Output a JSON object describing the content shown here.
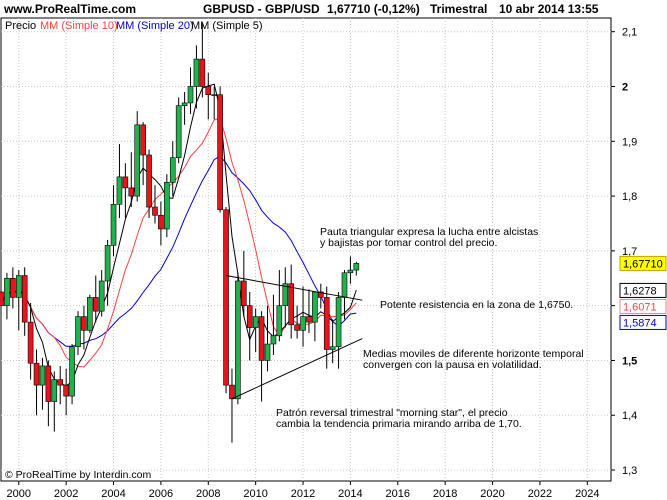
{
  "header": {
    "site": "www.ProRealTime.com",
    "instrument": "GBPUSD - GBP/USD",
    "quote": "1,67710 (-0,12%)",
    "period": "Trimestral",
    "datetime": "10 abr 2014 13:55"
  },
  "legend": {
    "price": "Precio",
    "ma10": "MM (Simple 10)",
    "ma20": "MM (Simple 20)",
    "ma5": "MM (Simple 5)"
  },
  "footer": {
    "copyright": "© ProRealTime by Interdin.com"
  },
  "annotations": {
    "triangle_l1": "Pauta triangular expresa la lucha entre alcistas",
    "triangle_l2": "y bajistas por tomar control del precio.",
    "resistance": "Potente resistencia en la zona de 1,6750.",
    "ma_l1": "Medias moviles de diferente horizonte temporal",
    "ma_l2": "convergen con la pausa en volatilidad.",
    "ms_l1": "Patrón reversal trimestral \"morning star\", el precio",
    "ms_l2": "cambia la tendencia primaria mirando arriba de 1,70."
  },
  "price_labels": [
    {
      "value": "1,67710",
      "y": 1.6771,
      "bg": "#ffff00",
      "border": "#c8a000",
      "color": "#000000"
    },
    {
      "value": "1,6278",
      "y": 1.6278,
      "bg": "#ffffff",
      "border": "#000000",
      "color": "#000000"
    },
    {
      "value": "1,6071",
      "y": 1.6071,
      "bg": "#ffffff",
      "border": "#ff8080",
      "color": "#ff4040"
    },
    {
      "value": "1,5874",
      "y": 1.5874,
      "bg": "#ffffff",
      "border": "#0000cc",
      "color": "#0000cc"
    }
  ],
  "colors": {
    "up": "#22b14c",
    "down": "#e8141c",
    "ma5": "#000000",
    "ma10": "#ff4040",
    "ma20": "#0000cc",
    "trendline": "#000000"
  },
  "chart_data": {
    "type": "candlestick",
    "xlim": [
      1999.25,
      2025.0
    ],
    "ylim": [
      1.28,
      2.125
    ],
    "y_ticks": [
      1.3,
      1.4,
      1.5,
      1.6,
      1.7,
      1.8,
      1.9,
      2.0,
      2.1
    ],
    "y_tick_labels": [
      "1,3",
      "1,4",
      "1,5",
      "",
      "1,7",
      "1,8",
      "1,9",
      "2",
      "2,1"
    ],
    "x_ticks": [
      2000,
      2002,
      2004,
      2006,
      2008,
      2010,
      2012,
      2014,
      2016,
      2018,
      2020,
      2022,
      2024
    ],
    "x_tick_labels": [
      "2000",
      "2002",
      "2004",
      "2006",
      "2008",
      "2010",
      "2012",
      "2014",
      "2016",
      "2018",
      "2020",
      "2022",
      "2024"
    ],
    "candles": [
      {
        "t": 1999.25,
        "o": 1.625,
        "h": 1.66,
        "l": 1.585,
        "c": 1.6
      },
      {
        "t": 1999.5,
        "o": 1.6,
        "h": 1.66,
        "l": 1.575,
        "c": 1.65
      },
      {
        "t": 1999.75,
        "o": 1.65,
        "h": 1.67,
        "l": 1.595,
        "c": 1.615
      },
      {
        "t": 2000.0,
        "o": 1.615,
        "h": 1.665,
        "l": 1.555,
        "c": 1.655
      },
      {
        "t": 2000.25,
        "o": 1.655,
        "h": 1.67,
        "l": 1.545,
        "c": 1.57
      },
      {
        "t": 2000.5,
        "o": 1.57,
        "h": 1.605,
        "l": 1.465,
        "c": 1.495
      },
      {
        "t": 2000.75,
        "o": 1.495,
        "h": 1.52,
        "l": 1.4,
        "c": 1.455
      },
      {
        "t": 2001.0,
        "o": 1.455,
        "h": 1.505,
        "l": 1.41,
        "c": 1.49
      },
      {
        "t": 2001.25,
        "o": 1.49,
        "h": 1.5,
        "l": 1.38,
        "c": 1.425
      },
      {
        "t": 2001.5,
        "o": 1.425,
        "h": 1.48,
        "l": 1.37,
        "c": 1.465
      },
      {
        "t": 2001.75,
        "o": 1.465,
        "h": 1.49,
        "l": 1.42,
        "c": 1.455
      },
      {
        "t": 2002.0,
        "o": 1.455,
        "h": 1.485,
        "l": 1.4,
        "c": 1.435
      },
      {
        "t": 2002.25,
        "o": 1.435,
        "h": 1.53,
        "l": 1.42,
        "c": 1.525
      },
      {
        "t": 2002.5,
        "o": 1.525,
        "h": 1.59,
        "l": 1.51,
        "c": 1.58
      },
      {
        "t": 2002.75,
        "o": 1.58,
        "h": 1.6,
        "l": 1.52,
        "c": 1.555
      },
      {
        "t": 2003.0,
        "o": 1.555,
        "h": 1.62,
        "l": 1.55,
        "c": 1.615
      },
      {
        "t": 2003.25,
        "o": 1.615,
        "h": 1.655,
        "l": 1.57,
        "c": 1.59
      },
      {
        "t": 2003.5,
        "o": 1.59,
        "h": 1.665,
        "l": 1.58,
        "c": 1.645
      },
      {
        "t": 2003.75,
        "o": 1.645,
        "h": 1.72,
        "l": 1.6,
        "c": 1.71
      },
      {
        "t": 2004.0,
        "o": 1.71,
        "h": 1.82,
        "l": 1.69,
        "c": 1.785
      },
      {
        "t": 2004.25,
        "o": 1.785,
        "h": 1.895,
        "l": 1.76,
        "c": 1.835
      },
      {
        "t": 2004.5,
        "o": 1.835,
        "h": 1.86,
        "l": 1.76,
        "c": 1.815
      },
      {
        "t": 2004.75,
        "o": 1.815,
        "h": 1.88,
        "l": 1.78,
        "c": 1.8
      },
      {
        "t": 2005.0,
        "o": 1.8,
        "h": 1.955,
        "l": 1.79,
        "c": 1.93
      },
      {
        "t": 2005.25,
        "o": 1.93,
        "h": 1.935,
        "l": 1.82,
        "c": 1.875
      },
      {
        "t": 2005.5,
        "o": 1.875,
        "h": 1.885,
        "l": 1.76,
        "c": 1.78
      },
      {
        "t": 2005.75,
        "o": 1.78,
        "h": 1.82,
        "l": 1.75,
        "c": 1.765
      },
      {
        "t": 2006.0,
        "o": 1.765,
        "h": 1.79,
        "l": 1.71,
        "c": 1.74
      },
      {
        "t": 2006.25,
        "o": 1.74,
        "h": 1.84,
        "l": 1.725,
        "c": 1.825
      },
      {
        "t": 2006.5,
        "o": 1.825,
        "h": 1.9,
        "l": 1.8,
        "c": 1.87
      },
      {
        "t": 2006.75,
        "o": 1.87,
        "h": 1.98,
        "l": 1.86,
        "c": 1.965
      },
      {
        "t": 2007.0,
        "o": 1.965,
        "h": 1.99,
        "l": 1.93,
        "c": 1.97
      },
      {
        "t": 2007.25,
        "o": 1.97,
        "h": 2.035,
        "l": 1.95,
        "c": 2.0
      },
      {
        "t": 2007.5,
        "o": 2.0,
        "h": 2.075,
        "l": 1.96,
        "c": 2.05
      },
      {
        "t": 2007.75,
        "o": 2.05,
        "h": 2.115,
        "l": 1.98,
        "c": 2.0
      },
      {
        "t": 2008.0,
        "o": 2.0,
        "h": 2.025,
        "l": 1.94,
        "c": 1.985
      },
      {
        "t": 2008.25,
        "o": 1.985,
        "h": 2.0,
        "l": 1.94,
        "c": 1.985
      },
      {
        "t": 2008.5,
        "o": 1.985,
        "h": 2.0,
        "l": 1.77,
        "c": 1.775
      },
      {
        "t": 2008.75,
        "o": 1.775,
        "h": 1.78,
        "l": 1.44,
        "c": 1.455
      },
      {
        "t": 2009.0,
        "o": 1.455,
        "h": 1.485,
        "l": 1.35,
        "c": 1.43
      },
      {
        "t": 2009.25,
        "o": 1.43,
        "h": 1.66,
        "l": 1.42,
        "c": 1.645
      },
      {
        "t": 2009.5,
        "o": 1.645,
        "h": 1.7,
        "l": 1.58,
        "c": 1.6
      },
      {
        "t": 2009.75,
        "o": 1.6,
        "h": 1.625,
        "l": 1.5,
        "c": 1.56
      },
      {
        "t": 2010.0,
        "o": 1.56,
        "h": 1.595,
        "l": 1.515,
        "c": 1.58
      },
      {
        "t": 2010.25,
        "o": 1.58,
        "h": 1.59,
        "l": 1.425,
        "c": 1.5
      },
      {
        "t": 2010.5,
        "o": 1.5,
        "h": 1.6,
        "l": 1.48,
        "c": 1.53
      },
      {
        "t": 2010.75,
        "o": 1.53,
        "h": 1.62,
        "l": 1.51,
        "c": 1.545
      },
      {
        "t": 2011.0,
        "o": 1.545,
        "h": 1.665,
        "l": 1.535,
        "c": 1.6
      },
      {
        "t": 2011.25,
        "o": 1.6,
        "h": 1.67,
        "l": 1.56,
        "c": 1.64
      },
      {
        "t": 2011.5,
        "o": 1.64,
        "h": 1.675,
        "l": 1.54,
        "c": 1.565
      },
      {
        "t": 2011.75,
        "o": 1.565,
        "h": 1.6,
        "l": 1.54,
        "c": 1.555
      },
      {
        "t": 2012.0,
        "o": 1.555,
        "h": 1.635,
        "l": 1.525,
        "c": 1.58
      },
      {
        "t": 2012.25,
        "o": 1.58,
        "h": 1.63,
        "l": 1.55,
        "c": 1.57
      },
      {
        "t": 2012.5,
        "o": 1.57,
        "h": 1.62,
        "l": 1.535,
        "c": 1.625
      },
      {
        "t": 2012.75,
        "o": 1.625,
        "h": 1.64,
        "l": 1.595,
        "c": 1.615
      },
      {
        "t": 2013.0,
        "o": 1.615,
        "h": 1.635,
        "l": 1.485,
        "c": 1.52
      },
      {
        "t": 2013.25,
        "o": 1.52,
        "h": 1.575,
        "l": 1.495,
        "c": 1.525
      },
      {
        "t": 2013.5,
        "o": 1.525,
        "h": 1.625,
        "l": 1.485,
        "c": 1.615
      },
      {
        "t": 2013.75,
        "o": 1.615,
        "h": 1.665,
        "l": 1.575,
        "c": 1.66
      },
      {
        "t": 2014.0,
        "o": 1.66,
        "h": 1.69,
        "l": 1.64,
        "c": 1.665
      },
      {
        "t": 2014.25,
        "o": 1.665,
        "h": 1.68,
        "l": 1.655,
        "c": 1.6771
      }
    ],
    "trendlines": [
      {
        "x": [
          2008.75,
          2014.5
        ],
        "y": [
          1.655,
          1.61
        ]
      },
      {
        "x": [
          2009.0,
          2014.5
        ],
        "y": [
          1.43,
          1.54
        ]
      }
    ]
  }
}
